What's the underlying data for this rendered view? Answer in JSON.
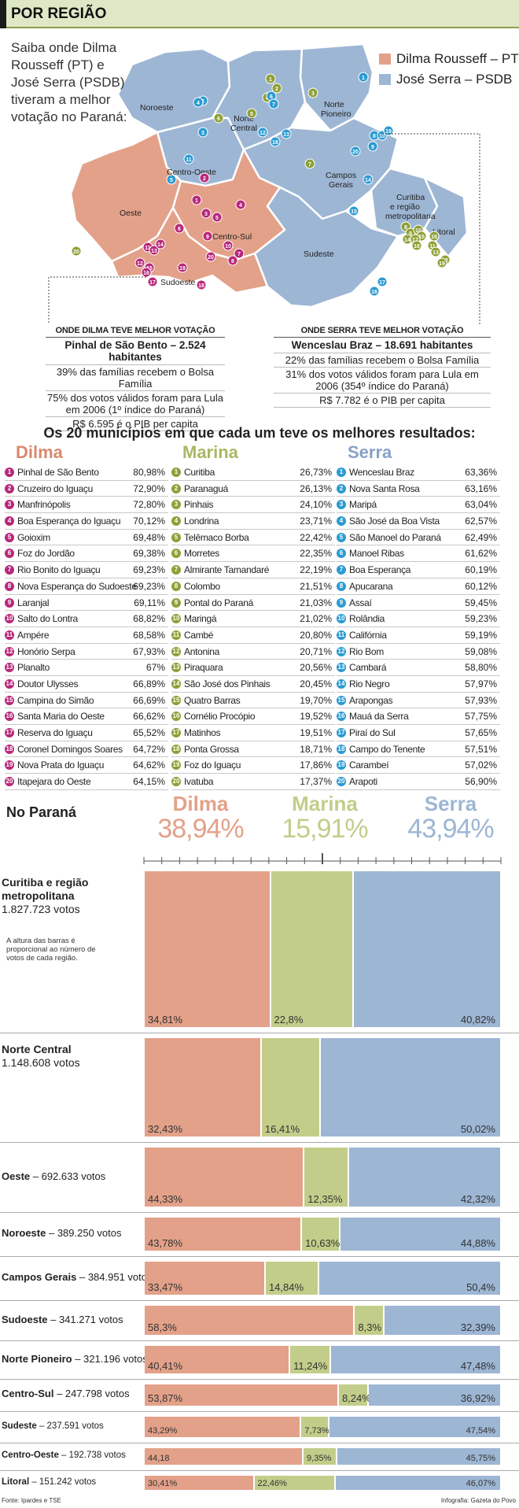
{
  "header": {
    "title": "POR REGIÃO"
  },
  "intro": "Saiba onde Dilma Rousseff (PT) e José Serra (PSDB) tiveram a melhor votação no Paraná:",
  "legend": {
    "dilma": "Dilma Rousseff – PT",
    "serra": "José Serra – PSDB"
  },
  "colors": {
    "dilma": "#e3a189",
    "marina": "#c3cd8a",
    "serra": "#9db6d4",
    "dilma_text": "#d9896d",
    "marina_text": "#a9b764",
    "serra_text": "#86a2c8",
    "dilma_dot": "#b8287a",
    "marina_dot": "#8ea036",
    "serra_dot": "#2b9bd2"
  },
  "map_regions": [
    "Noroeste",
    "Norte Central",
    "Norte Pioneiro",
    "Centro-Oeste",
    "Campos Gerais",
    "Curitiba e região metropolitana",
    "Litoral",
    "Oeste",
    "Centro-Sul",
    "Sudeste",
    "Sudoeste"
  ],
  "best_dilma": {
    "heading": "ONDE DILMA TEVE MELHOR VOTAÇÃO",
    "name": "Pinhal de São Bento – 2.524 habitantes",
    "lines": [
      "39% das famílias recebem o Bolsa Família",
      "75% dos votos válidos foram para Lula em 2006 (1º índice do Paraná)",
      "R$ 6.595 é o PIB per capita"
    ]
  },
  "best_serra": {
    "heading": "ONDE SERRA TEVE MELHOR VOTAÇÃO",
    "name": "Wenceslau Braz – 18.691 habitantes",
    "lines": [
      "22% das famílias recebem o Bolsa Família",
      "31% dos votos válidos foram para Lula em 2006 (354º índice do Paraná)",
      "R$ 7.782 é o PIB per capita"
    ]
  },
  "top20_title": "Os 20 municípios em que cada um teve os melhores resultados:",
  "top20": {
    "dilma": {
      "label": "Dilma",
      "items": [
        [
          "Pinhal de São Bento",
          "80,98%"
        ],
        [
          "Cruzeiro do Iguaçu",
          "72,90%"
        ],
        [
          "Manfrinópolis",
          "72,80%"
        ],
        [
          "Boa Esperança do Iguaçu",
          "70,12%"
        ],
        [
          "Goioxim",
          "69,48%"
        ],
        [
          "Foz do Jordão",
          "69,38%"
        ],
        [
          "Rio Bonito do Iguaçu",
          "69,23%"
        ],
        [
          "Nova Esperança do Sudoeste",
          "69,23%"
        ],
        [
          "Laranjal",
          "69,11%"
        ],
        [
          "Salto do Lontra",
          "68,82%"
        ],
        [
          "Ampére",
          "68,58%"
        ],
        [
          "Honório Serpa",
          "67,93%"
        ],
        [
          "Planalto",
          "67%"
        ],
        [
          "Doutor Ulysses",
          "66,89%"
        ],
        [
          "Campina do Simão",
          "66,69%"
        ],
        [
          "Santa Maria do Oeste",
          "66,62%"
        ],
        [
          "Reserva do Iguaçu",
          "65,52%"
        ],
        [
          "Coronel Domingos Soares",
          "64,72%"
        ],
        [
          "Nova Prata do Iguaçu",
          "64,62%"
        ],
        [
          "Itapejara do Oeste",
          "64,15%"
        ]
      ]
    },
    "marina": {
      "label": "Marina",
      "items": [
        [
          "Curitiba",
          "26,73%"
        ],
        [
          "Paranaguá",
          "26,13%"
        ],
        [
          "Pinhais",
          "24,10%"
        ],
        [
          "Londrina",
          "23,71%"
        ],
        [
          "Telêmaco Borba",
          "22,42%"
        ],
        [
          "Morretes",
          "22,35%"
        ],
        [
          "Almirante Tamandaré",
          "22,19%"
        ],
        [
          "Colombo",
          "21,51%"
        ],
        [
          "Pontal do Paraná",
          "21,03%"
        ],
        [
          "Maringá",
          "21,02%"
        ],
        [
          "Cambé",
          "20,80%"
        ],
        [
          "Antonina",
          "20,71%"
        ],
        [
          "Piraquara",
          "20,56%"
        ],
        [
          "São José dos Pinhais",
          "20,45%"
        ],
        [
          "Quatro Barras",
          "19,70%"
        ],
        [
          "Cornélio Procópio",
          "19,52%"
        ],
        [
          "Matinhos",
          "19,51%"
        ],
        [
          "Ponta Grossa",
          "18,71%"
        ],
        [
          "Foz do Iguaçu",
          "17,86%"
        ],
        [
          "Ivatuba",
          "17,37%"
        ]
      ]
    },
    "serra": {
      "label": "Serra",
      "items": [
        [
          "Wenceslau Braz",
          "63,36%"
        ],
        [
          "Nova Santa Rosa",
          "63,16%"
        ],
        [
          "Maripá",
          "63,04%"
        ],
        [
          "São José da Boa Vista",
          "62,57%"
        ],
        [
          "São Manoel do Paraná",
          "62,49%"
        ],
        [
          "Manoel Ribas",
          "61,62%"
        ],
        [
          "Boa Esperança",
          "60,19%"
        ],
        [
          "Apucarana",
          "60,12%"
        ],
        [
          "Assaí",
          "59,45%"
        ],
        [
          "Rolândia",
          "59,23%"
        ],
        [
          "Califórnia",
          "59,19%"
        ],
        [
          "Rio Bom",
          "59,08%"
        ],
        [
          "Cambará",
          "58,80%"
        ],
        [
          "Rio Negro",
          "57,97%"
        ],
        [
          "Arapongas",
          "57,93%"
        ],
        [
          "Mauá da Serra",
          "57,75%"
        ],
        [
          "Piraí do Sul",
          "57,65%"
        ],
        [
          "Campo do Tenente",
          "57,51%"
        ],
        [
          "Carambeí",
          "57,02%"
        ],
        [
          "Arapoti",
          "56,90%"
        ]
      ]
    }
  },
  "parana_label": "No Paraná",
  "totals": [
    {
      "name": "Dilma",
      "value": "38,94%"
    },
    {
      "name": "Marina",
      "value": "15,91%"
    },
    {
      "name": "Serra",
      "value": "43,94%"
    }
  ],
  "bar_note": "A altura das barras é proporcional ao número de votos de cada região.",
  "chart_data": {
    "type": "bar",
    "title": "No Paraná",
    "series_names": [
      "Dilma",
      "Marina",
      "Serra"
    ],
    "regions": [
      {
        "name": "Curitiba e região metropolitana",
        "votes_label": "1.827.723 votos",
        "votes": 1827723,
        "values": [
          34.81,
          22.8,
          40.82
        ],
        "labels": [
          "34,81%",
          "22,8%",
          "40,82%"
        ]
      },
      {
        "name": "Norte Central",
        "votes_label": "1.148.608 votos",
        "votes": 1148608,
        "values": [
          32.43,
          16.41,
          50.02
        ],
        "labels": [
          "32,43%",
          "16,41%",
          "50,02%"
        ]
      },
      {
        "name": "Oeste",
        "votes_label": "692.633 votos",
        "votes": 692633,
        "values": [
          44.33,
          12.35,
          42.32
        ],
        "labels": [
          "44,33%",
          "12,35%",
          "42,32%"
        ]
      },
      {
        "name": "Noroeste",
        "votes_label": "389.250 votos",
        "votes": 389250,
        "values": [
          43.78,
          10.63,
          44.88
        ],
        "labels": [
          "43,78%",
          "10,63%",
          "44,88%"
        ]
      },
      {
        "name": "Campos Gerais",
        "votes_label": "384.951 votos",
        "votes": 384951,
        "values": [
          33.47,
          14.84,
          50.4
        ],
        "labels": [
          "33,47%",
          "14,84%",
          "50,4%"
        ]
      },
      {
        "name": "Sudoeste",
        "votes_label": "341.271 votos",
        "votes": 341271,
        "values": [
          58.3,
          8.3,
          32.39
        ],
        "labels": [
          "58,3%",
          "8,3%",
          "32,39%"
        ]
      },
      {
        "name": "Norte Pioneiro",
        "votes_label": "321.196 votos",
        "votes": 321196,
        "values": [
          40.41,
          11.24,
          47.48
        ],
        "labels": [
          "40,41%",
          "11,24%",
          "47,48%"
        ]
      },
      {
        "name": "Centro-Sul",
        "votes_label": "247.798 votos",
        "votes": 247798,
        "values": [
          53.87,
          8.24,
          36.92
        ],
        "labels": [
          "53,87%",
          "8,24%",
          "36,92%"
        ]
      },
      {
        "name": "Sudeste",
        "votes_label": "237.591 votos",
        "votes": 237591,
        "values": [
          43.29,
          7.73,
          47.54
        ],
        "labels": [
          "43,29%",
          "7,73%",
          "47,54%"
        ]
      },
      {
        "name": "Centro-Oeste",
        "votes_label": "192.738 votos",
        "votes": 192738,
        "values": [
          44.18,
          9.35,
          45.75
        ],
        "labels": [
          "44,18",
          "9,35%",
          "45,75%"
        ]
      },
      {
        "name": "Litoral",
        "votes_label": "151.242 votos",
        "votes": 151242,
        "values": [
          30.41,
          22.46,
          46.07
        ],
        "labels": [
          "30,41%",
          "22,46%",
          "46,07%"
        ]
      }
    ]
  },
  "footer": {
    "source": "Fonte: Ipardes e TSE",
    "credit": "Infografia: Gazeta do Povo"
  }
}
